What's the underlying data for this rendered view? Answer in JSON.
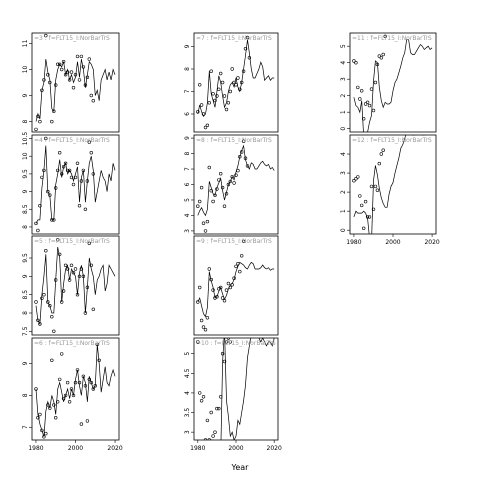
{
  "chart_data": {
    "type": "scatter",
    "xlabel": "Year",
    "x_ticks": [
      1980,
      2000,
      2020
    ],
    "xlim": [
      1978,
      2022
    ],
    "panels": [
      {
        "label": "=3 : f=FLT15_I:NorBarTrS",
        "ylim": [
          7.6,
          11.4
        ],
        "yticks": [
          8,
          9,
          10,
          11
        ],
        "xaxis": false,
        "years": [
          1980,
          1981,
          1982,
          1983,
          1984,
          1985,
          1986,
          1987,
          1988,
          1989,
          1990,
          1991,
          1992,
          1993,
          1994,
          1995,
          1996,
          1997,
          1998,
          1999,
          2000,
          2001,
          2002,
          2003,
          2004,
          2005,
          2006,
          2007,
          2008,
          2009,
          2010,
          2011,
          2012,
          2013,
          2014,
          2015,
          2016,
          2017,
          2018,
          2019,
          2020
        ],
        "line": [
          8.0,
          8.3,
          8.1,
          9.2,
          9.5,
          10.4,
          9.9,
          9.6,
          8.5,
          8.4,
          9.6,
          10.0,
          10.2,
          10.1,
          10.3,
          9.8,
          10.0,
          9.6,
          9.8,
          9.5,
          9.7,
          10.3,
          9.7,
          10.4,
          10.0,
          9.3,
          9.8,
          10.3,
          10.2,
          10.0,
          9.0,
          9.2,
          8.8,
          9.6,
          9.8,
          10.0,
          9.6,
          9.9,
          9.6,
          10.0,
          9.8
        ],
        "points": [
          7.7,
          8.2,
          8.0,
          9.2,
          9.6,
          11.3,
          9.8,
          9.5,
          8.0,
          8.4,
          9.4,
          10.2,
          10.2,
          10.0,
          10.3,
          9.8,
          9.9,
          9.6,
          9.9,
          9.3,
          9.8,
          10.5,
          9.6,
          10.5,
          10.1,
          9.4,
          9.7,
          10.4,
          9.0,
          8.8
        ]
      },
      {
        "label": "=4 : f=FLT15_I:NorBarTrS",
        "ylim": [
          7.8,
          10.6
        ],
        "yticks": [
          8.0,
          8.5,
          9.0,
          9.5,
          10.0,
          10.5
        ],
        "xaxis": false,
        "years": [
          1980,
          1981,
          1982,
          1983,
          1984,
          1985,
          1986,
          1987,
          1988,
          1989,
          1990,
          1991,
          1992,
          1993,
          1994,
          1995,
          1996,
          1997,
          1998,
          1999,
          2000,
          2001,
          2002,
          2003,
          2004,
          2005,
          2006,
          2007,
          2008,
          2009,
          2010,
          2011,
          2012,
          2013,
          2014,
          2015,
          2016,
          2017,
          2018,
          2019,
          2020
        ],
        "line": [
          8.1,
          8.2,
          8.2,
          9.1,
          9.6,
          10.3,
          9.0,
          8.9,
          8.2,
          8.2,
          9.2,
          9.5,
          9.9,
          9.4,
          9.7,
          9.8,
          9.5,
          9.6,
          9.5,
          9.3,
          9.5,
          9.7,
          8.7,
          9.4,
          9.6,
          8.7,
          9.3,
          9.8,
          10.0,
          9.6,
          8.7,
          9.0,
          9.3,
          9.6,
          9.4,
          9.3,
          9.0,
          9.5,
          9.3,
          9.8,
          9.6
        ],
        "points": [
          8.1,
          7.9,
          8.6,
          9.4,
          9.6,
          10.5,
          9.0,
          8.9,
          8.2,
          8.2,
          9.1,
          9.6,
          10.1,
          9.5,
          9.7,
          9.8,
          9.6,
          9.6,
          9.4,
          9.2,
          9.4,
          9.8,
          8.6,
          9.3,
          9.6,
          8.5,
          9.3,
          10.4,
          10.1,
          9.5
        ]
      },
      {
        "label": "=5 : f=FLT15_I:NorBarTrS",
        "ylim": [
          7.4,
          10.1
        ],
        "yticks": [
          7.5,
          8.0,
          8.5,
          9.0,
          9.5
        ],
        "xaxis": false,
        "years": [
          1980,
          1981,
          1982,
          1983,
          1984,
          1985,
          1986,
          1987,
          1988,
          1989,
          1990,
          1991,
          1992,
          1993,
          1994,
          1995,
          1996,
          1997,
          1998,
          1999,
          2000,
          2001,
          2002,
          2003,
          2004,
          2005,
          2006,
          2007,
          2008,
          2009,
          2010,
          2011,
          2012,
          2013,
          2014,
          2015,
          2016,
          2017,
          2018,
          2019,
          2020
        ],
        "line": [
          8.2,
          7.8,
          7.7,
          8.5,
          9.0,
          9.6,
          8.3,
          8.2,
          8.0,
          8.0,
          8.9,
          9.8,
          9.5,
          8.3,
          8.8,
          9.2,
          9.3,
          8.9,
          9.2,
          9.1,
          9.0,
          8.5,
          9.1,
          9.3,
          9.0,
          8.0,
          8.7,
          9.5,
          9.2,
          9.0,
          8.5,
          8.9,
          9.0,
          9.2,
          9.3,
          8.6,
          8.8,
          9.3,
          9.2,
          9.1,
          9.0
        ],
        "points": [
          8.3,
          7.8,
          7.7,
          8.4,
          8.5,
          9.7,
          8.3,
          8.2,
          7.9,
          7.5,
          8.9,
          10.0,
          9.6,
          8.3,
          8.6,
          9.3,
          9.2,
          8.9,
          9.3,
          9.1,
          9.2,
          8.5,
          9.0,
          9.2,
          9.0,
          8.0,
          8.7,
          9.9,
          9.3,
          8.1
        ]
      },
      {
        "label": "=6 : f=FLT15_I:NorBarTrS",
        "ylim": [
          6.6,
          9.8
        ],
        "yticks": [
          7.0,
          8.0,
          9.0
        ],
        "xaxis": true,
        "years": [
          1980,
          1981,
          1982,
          1983,
          1984,
          1985,
          1986,
          1987,
          1988,
          1989,
          1990,
          1991,
          1992,
          1993,
          1994,
          1995,
          1996,
          1997,
          1998,
          1999,
          2000,
          2001,
          2002,
          2003,
          2004,
          2005,
          2006,
          2007,
          2008,
          2009,
          2010,
          2011,
          2012,
          2013,
          2014,
          2015,
          2016,
          2017,
          2018,
          2019,
          2020
        ],
        "line": [
          8.2,
          7.4,
          7.1,
          6.9,
          6.7,
          7.5,
          7.8,
          7.6,
          8.0,
          7.8,
          7.4,
          8.2,
          8.4,
          8.1,
          7.8,
          8.0,
          8.2,
          7.9,
          8.2,
          8.0,
          8.5,
          8.8,
          8.3,
          8.0,
          8.6,
          8.4,
          7.8,
          8.6,
          8.4,
          8.2,
          8.3,
          9.6,
          9.0,
          8.1,
          8.5,
          8.9,
          8.4,
          8.3,
          8.6,
          8.8,
          8.6
        ],
        "points": [
          8.2,
          7.3,
          7.4,
          6.9,
          6.7,
          6.8,
          7.7,
          7.6,
          9.1,
          7.7,
          7.3,
          7.8,
          8.5,
          9.3,
          7.9,
          8.0,
          8.4,
          7.8,
          8.2,
          8.0,
          8.4,
          8.8,
          8.4,
          7.1,
          8.6,
          8.3,
          7.2,
          8.5,
          8.4,
          8.2,
          8.3,
          9.6,
          9.1
        ]
      },
      {
        "label": "=7 : f=FLT15_I:NorBarTrS",
        "ylim": [
          5.2,
          9.6
        ],
        "yticks": [
          6,
          7,
          8,
          9
        ],
        "xaxis": false,
        "years": [
          1980,
          1981,
          1982,
          1983,
          1984,
          1985,
          1986,
          1987,
          1988,
          1989,
          1990,
          1991,
          1992,
          1993,
          1994,
          1995,
          1996,
          1997,
          1998,
          1999,
          2000,
          2001,
          2002,
          2003,
          2004,
          2005,
          2006,
          2007,
          2008,
          2009,
          2010,
          2011,
          2012,
          2013,
          2014,
          2015,
          2016,
          2017,
          2018,
          2019,
          2020
        ],
        "line": [
          6.0,
          6.4,
          6.1,
          5.9,
          6.0,
          6.5,
          7.9,
          6.9,
          6.6,
          6.3,
          7.0,
          7.7,
          7.4,
          6.8,
          6.3,
          6.5,
          7.0,
          7.3,
          7.4,
          7.2,
          7.6,
          7.2,
          7.0,
          7.4,
          8.0,
          8.6,
          9.3,
          8.7,
          8.0,
          7.6,
          7.6,
          7.8,
          8.0,
          8.3,
          8.1,
          7.5,
          7.6,
          7.7,
          7.5,
          7.6,
          7.6
        ],
        "points": [
          6.1,
          7.3,
          6.4,
          6.0,
          5.4,
          5.5,
          6.5,
          7.9,
          6.9,
          6.6,
          6.8,
          7.1,
          7.8,
          7.4,
          6.8,
          6.2,
          6.5,
          7.0,
          8.0,
          7.4,
          7.3,
          7.6,
          7.1,
          7.4,
          7.9,
          8.9,
          9.4,
          8.5
        ]
      },
      {
        "label": "=8 : f=FLT15_I:NorBarTrS",
        "ylim": [
          2.8,
          9.2
        ],
        "yticks": [
          3,
          4,
          5,
          6,
          7,
          8,
          9
        ],
        "xaxis": false,
        "years": [
          1980,
          1981,
          1982,
          1983,
          1984,
          1985,
          1986,
          1987,
          1988,
          1989,
          1990,
          1991,
          1992,
          1993,
          1994,
          1995,
          1996,
          1997,
          1998,
          1999,
          2000,
          2001,
          2002,
          2003,
          2004,
          2005,
          2006,
          2007,
          2008,
          2009,
          2010,
          2011,
          2012,
          2013,
          2014,
          2015,
          2016,
          2017,
          2018,
          2019,
          2020
        ],
        "line": [
          4.0,
          4.3,
          4.5,
          4.2,
          4.0,
          4.4,
          6.2,
          5.8,
          5.4,
          5.3,
          5.8,
          6.1,
          6.4,
          5.6,
          5.0,
          5.5,
          6.0,
          6.2,
          6.5,
          6.3,
          6.8,
          7.2,
          7.8,
          8.2,
          8.5,
          7.6,
          7.2,
          7.0,
          7.4,
          7.3,
          7.0,
          7.0,
          7.2,
          7.4,
          7.5,
          7.3,
          7.2,
          7.3,
          7.0,
          7.1,
          6.9
        ],
        "points": [
          4.6,
          4.9,
          5.8,
          3.5,
          3.0,
          3.6,
          7.1,
          5.6,
          4.9,
          5.3,
          5.7,
          6.3,
          6.7,
          5.8,
          4.6,
          5.4,
          6.0,
          6.2,
          6.5,
          6.1,
          6.6,
          6.9,
          7.8,
          8.1,
          8.8,
          7.7,
          7.2
        ]
      },
      {
        "label": "=9 : f=FLT15_I:NorBarTrS",
        "ylim": [
          1.0,
          8.5
        ],
        "yticks": [],
        "xaxis": false,
        "years": [
          1980,
          1981,
          1982,
          1983,
          1984,
          1985,
          1986,
          1987,
          1988,
          1989,
          1990,
          1991,
          1992,
          1993,
          1994,
          1995,
          1996,
          1997,
          1998,
          1999,
          2000,
          2001,
          2002,
          2003,
          2004,
          2005,
          2006,
          2007,
          2008,
          2009,
          2010,
          2011,
          2012,
          2013,
          2014,
          2015,
          2016,
          2017,
          2018,
          2019,
          2020
        ],
        "line": [
          3.5,
          3.8,
          3.2,
          2.6,
          2.4,
          3.1,
          5.8,
          5.1,
          4.6,
          3.8,
          3.9,
          4.3,
          4.6,
          4.1,
          3.7,
          4.0,
          4.5,
          4.8,
          4.9,
          5.2,
          5.8,
          6.2,
          6.5,
          6.4,
          6.3,
          6.1,
          6.0,
          6.3,
          6.5,
          6.4,
          6.0,
          6.0,
          6.0,
          6.1,
          6.3,
          6.1,
          6.0,
          6.1,
          5.9,
          6.0,
          6.0
        ],
        "points": [
          3.5,
          4.6,
          2.1,
          1.6,
          1.4,
          2.3,
          6.0,
          5.2,
          4.4,
          3.8,
          3.9,
          4.5,
          4.6,
          3.8,
          3.6,
          4.4,
          4.9,
          4.6,
          4.8,
          5.3,
          6.2,
          6.4,
          5.8,
          7.0,
          8.1
        ]
      },
      {
        "label": "=10 : f=FLT15_I:NorBarTrS",
        "ylim": [
          2.8,
          5.4
        ],
        "yticks": [
          3.0,
          3.5,
          4.0,
          4.5,
          5.0
        ],
        "xaxis": true,
        "years": [
          1980,
          1981,
          1982,
          1983,
          1984,
          1985,
          1986,
          1987,
          1988,
          1989,
          1990,
          1991,
          1992,
          1993,
          1994,
          1995,
          1996,
          1997,
          1998,
          1999,
          2000,
          2001,
          2002,
          2003,
          2004,
          2005,
          2006,
          2007,
          2008,
          2009,
          2010,
          2011,
          2012,
          2013,
          2014,
          2015,
          2016,
          2017,
          2018,
          2019,
          2020
        ],
        "line": [
          2.7,
          2.7,
          2.7,
          2.6,
          2.7,
          2.6,
          2.5,
          2.8,
          2.8,
          2.7,
          2.6,
          2.5,
          2.4,
          4.8,
          5.6,
          3.8,
          3.4,
          2.9,
          3.0,
          2.8,
          2.9,
          3.3,
          3.2,
          3.5,
          3.8,
          4.2,
          4.9,
          5.2,
          5.5,
          5.7,
          6.0,
          5.8,
          5.4,
          5.3,
          5.4,
          5.3,
          5.2,
          5.3,
          5.3,
          5.2,
          5.4
        ],
        "points": [
          5.3,
          4.0,
          3.8,
          3.9,
          2.8,
          3.3,
          2.8,
          3.5,
          2.9,
          3.0,
          3.6,
          3.6,
          3.9,
          5.0,
          4.8,
          5.3,
          5.4,
          5.3
        ]
      },
      {
        "label": "=11 : f=FLT15_I:NorBarTrS",
        "ylim": [
          -0.2,
          5.8
        ],
        "yticks": [
          0,
          1,
          2,
          3,
          4,
          5
        ],
        "xaxis": false,
        "years": [
          1980,
          1981,
          1982,
          1983,
          1984,
          1985,
          1986,
          1987,
          1988,
          1989,
          1990,
          1991,
          1992,
          1993,
          1994,
          1995,
          1996,
          1997,
          1998,
          1999,
          2000,
          2001,
          2002,
          2003,
          2004,
          2005,
          2006,
          2007,
          2008,
          2009,
          2010,
          2011,
          2012,
          2013,
          2014,
          2015,
          2016,
          2017,
          2018,
          2019,
          2020
        ],
        "line": [
          1.9,
          1.4,
          1.3,
          1.0,
          1.7,
          -0.5,
          -0.8,
          -0.2,
          0.4,
          0.8,
          2.9,
          4.1,
          4.0,
          2.5,
          1.7,
          1.3,
          1.6,
          1.5,
          1.5,
          1.6,
          2.3,
          2.8,
          3.0,
          3.4,
          3.8,
          4.3,
          4.6,
          5.4,
          5.4,
          4.6,
          4.5,
          4.5,
          4.7,
          4.9,
          5.1,
          5.0,
          4.8,
          4.9,
          5.0,
          4.8,
          4.9
        ],
        "points": [
          4.1,
          4.0,
          2.5,
          1.8,
          2.3,
          0.6,
          1.5,
          1.6,
          1.4,
          2.4,
          1.1,
          2.8,
          3.9,
          4.4,
          4.3,
          4.5,
          5.6
        ]
      },
      {
        "label": "=12 : f=FLT15_I:NorBarTrS",
        "ylim": [
          -0.2,
          5.0
        ],
        "yticks": [
          0,
          1,
          2,
          3,
          4
        ],
        "xaxis": true,
        "years": [
          1980,
          1981,
          1982,
          1983,
          1984,
          1985,
          1986,
          1987,
          1988,
          1989,
          1990,
          1991,
          1992,
          1993,
          1994,
          1995,
          1996,
          1997,
          1998,
          1999,
          2000,
          2001,
          2002,
          2003,
          2004,
          2005,
          2006,
          2007,
          2008,
          2009,
          2010,
          2011,
          2012,
          2013,
          2014,
          2015,
          2016,
          2017,
          2018,
          2019,
          2020
        ],
        "line": [
          0.7,
          1.0,
          0.9,
          0.9,
          0.9,
          1.0,
          0.9,
          0.6,
          -0.4,
          -0.6,
          2.6,
          3.4,
          2.9,
          2.2,
          1.7,
          1.4,
          1.2,
          1.2,
          1.9,
          2.3,
          2.5,
          3.0,
          3.4,
          3.8,
          4.3,
          4.5,
          4.8,
          5.2,
          5.3,
          5.2,
          5.0,
          5.0,
          5.1,
          5.2,
          5.1,
          5.0,
          5.0,
          5.1,
          5.2,
          5.1,
          5.1
        ],
        "points": [
          2.6,
          2.7,
          2.8,
          1.8,
          1.3,
          0.1,
          1.5,
          0.7,
          0.7,
          2.3,
          1.1,
          2.3,
          2.1,
          3.5,
          4.0,
          4.2
        ]
      }
    ]
  }
}
